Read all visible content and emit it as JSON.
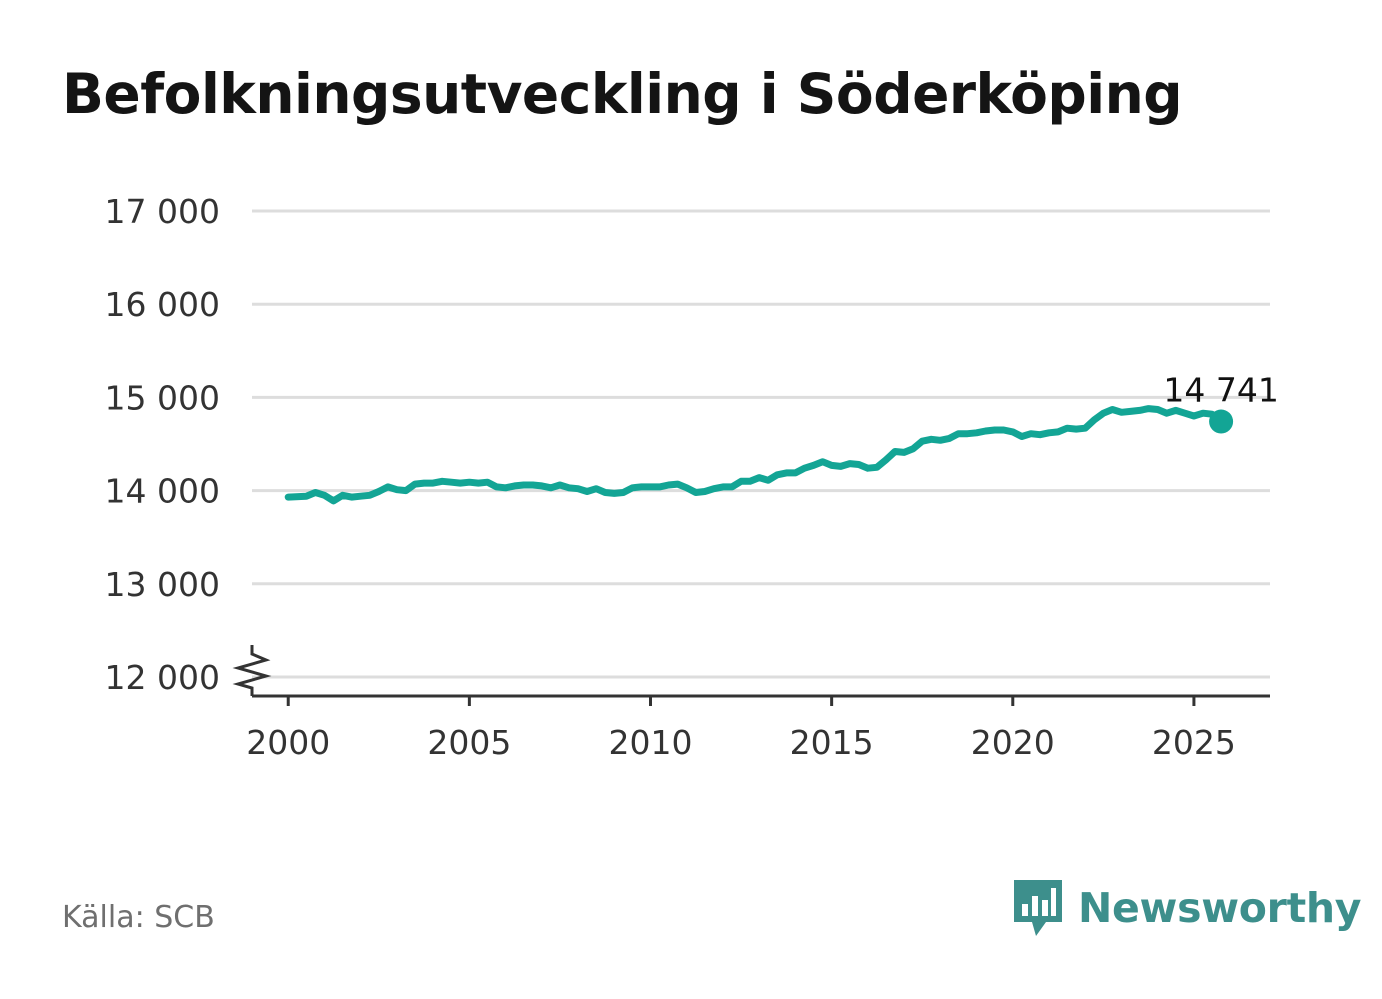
{
  "title": "Befolkningsutveckling i Söderköping",
  "source": "Källa: SCB",
  "brand": {
    "name": "Newsworthy",
    "logo_icon": "bar-chart-speech-bubble-icon",
    "color": "#3d8f8c"
  },
  "colors": {
    "line": "#13a595",
    "grid": "#dddddd",
    "axis": "#333333",
    "tick_text": "#333333"
  },
  "chart_data": {
    "type": "line",
    "title": "Befolkningsutveckling i Söderköping",
    "xlabel": "",
    "ylabel": "",
    "xlim": [
      1999,
      2027.1
    ],
    "ylim": [
      12000,
      17000
    ],
    "y_axis_break": true,
    "grid": true,
    "x_ticks": [
      2000,
      2005,
      2010,
      2015,
      2020,
      2025
    ],
    "x_tick_labels": [
      "2000",
      "2005",
      "2010",
      "2015",
      "2020",
      "2025"
    ],
    "y_ticks": [
      12000,
      13000,
      14000,
      15000,
      16000,
      17000
    ],
    "y_tick_labels": [
      "12 000",
      "13 000",
      "14 000",
      "15 000",
      "16 000",
      "17 000"
    ],
    "end_label": "14 741",
    "series": [
      {
        "points": [
          [
            2000.0,
            13930
          ],
          [
            2000.5,
            13940
          ],
          [
            2000.75,
            13980
          ],
          [
            2001.0,
            13950
          ],
          [
            2001.25,
            13890
          ],
          [
            2001.5,
            13950
          ],
          [
            2001.75,
            13930
          ],
          [
            2002.0,
            13940
          ],
          [
            2002.25,
            13950
          ],
          [
            2002.5,
            13990
          ],
          [
            2002.75,
            14040
          ],
          [
            2003.0,
            14010
          ],
          [
            2003.25,
            14000
          ],
          [
            2003.5,
            14070
          ],
          [
            2003.75,
            14080
          ],
          [
            2004.0,
            14080
          ],
          [
            2004.25,
            14100
          ],
          [
            2004.5,
            14090
          ],
          [
            2004.75,
            14080
          ],
          [
            2005.0,
            14090
          ],
          [
            2005.25,
            14080
          ],
          [
            2005.5,
            14090
          ],
          [
            2005.75,
            14040
          ],
          [
            2006.0,
            14030
          ],
          [
            2006.25,
            14050
          ],
          [
            2006.5,
            14060
          ],
          [
            2006.75,
            14060
          ],
          [
            2007.0,
            14050
          ],
          [
            2007.25,
            14030
          ],
          [
            2007.5,
            14060
          ],
          [
            2007.75,
            14030
          ],
          [
            2008.0,
            14020
          ],
          [
            2008.25,
            13990
          ],
          [
            2008.5,
            14020
          ],
          [
            2008.75,
            13980
          ],
          [
            2009.0,
            13970
          ],
          [
            2009.25,
            13980
          ],
          [
            2009.5,
            14030
          ],
          [
            2009.75,
            14040
          ],
          [
            2010.0,
            14040
          ],
          [
            2010.25,
            14040
          ],
          [
            2010.5,
            14060
          ],
          [
            2010.75,
            14070
          ],
          [
            2011.0,
            14030
          ],
          [
            2011.25,
            13980
          ],
          [
            2011.5,
            13990
          ],
          [
            2011.75,
            14020
          ],
          [
            2012.0,
            14040
          ],
          [
            2012.25,
            14040
          ],
          [
            2012.5,
            14100
          ],
          [
            2012.75,
            14100
          ],
          [
            2013.0,
            14140
          ],
          [
            2013.25,
            14110
          ],
          [
            2013.5,
            14170
          ],
          [
            2013.75,
            14190
          ],
          [
            2014.0,
            14190
          ],
          [
            2014.25,
            14240
          ],
          [
            2014.5,
            14270
          ],
          [
            2014.75,
            14310
          ],
          [
            2015.0,
            14270
          ],
          [
            2015.25,
            14260
          ],
          [
            2015.5,
            14290
          ],
          [
            2015.75,
            14280
          ],
          [
            2016.0,
            14240
          ],
          [
            2016.25,
            14250
          ],
          [
            2016.5,
            14330
          ],
          [
            2016.75,
            14420
          ],
          [
            2017.0,
            14410
          ],
          [
            2017.25,
            14450
          ],
          [
            2017.5,
            14530
          ],
          [
            2017.75,
            14550
          ],
          [
            2018.0,
            14540
          ],
          [
            2018.25,
            14560
          ],
          [
            2018.5,
            14610
          ],
          [
            2018.75,
            14610
          ],
          [
            2019.0,
            14620
          ],
          [
            2019.25,
            14640
          ],
          [
            2019.5,
            14650
          ],
          [
            2019.75,
            14650
          ],
          [
            2020.0,
            14630
          ],
          [
            2020.25,
            14580
          ],
          [
            2020.5,
            14610
          ],
          [
            2020.75,
            14600
          ],
          [
            2021.0,
            14620
          ],
          [
            2021.25,
            14630
          ],
          [
            2021.5,
            14670
          ],
          [
            2021.75,
            14660
          ],
          [
            2022.0,
            14670
          ],
          [
            2022.25,
            14760
          ],
          [
            2022.5,
            14830
          ],
          [
            2022.75,
            14870
          ],
          [
            2023.0,
            14840
          ],
          [
            2023.25,
            14850
          ],
          [
            2023.5,
            14860
          ],
          [
            2023.75,
            14880
          ],
          [
            2024.0,
            14870
          ],
          [
            2024.25,
            14830
          ],
          [
            2024.5,
            14860
          ],
          [
            2024.75,
            14830
          ],
          [
            2025.0,
            14800
          ],
          [
            2025.25,
            14830
          ],
          [
            2025.5,
            14820
          ],
          [
            2025.75,
            14741
          ]
        ]
      }
    ]
  }
}
